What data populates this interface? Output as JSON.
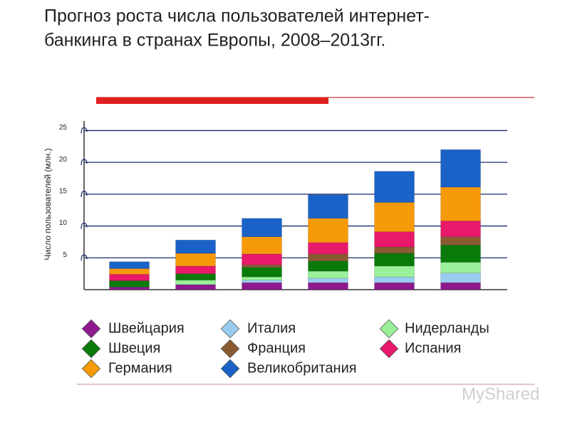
{
  "chart_data": {
    "type": "stacked_bar",
    "title": [
      "Прогноз роста числа пользователей интернет-",
      "банкинга в странах Европы, 2008–2013гг."
    ],
    "y_label": "Число пользователей (млн.)",
    "categories": [
      null,
      null,
      null,
      null,
      null,
      null
    ],
    "series": [
      {
        "name": "Швейцария",
        "color": "#8e1a8e",
        "values": [
          0.4,
          0.8,
          1.1,
          1.1,
          1.1,
          1.1
        ]
      },
      {
        "name": "Италия",
        "color": "#99ccf0",
        "values": [
          0,
          0,
          0.4,
          0.7,
          0.9,
          1.5
        ]
      },
      {
        "name": "Нидерланды",
        "color": "#99f099",
        "values": [
          0,
          0.7,
          0.5,
          1.1,
          1.7,
          1.7
        ]
      },
      {
        "name": "Швеция",
        "color": "#0a7a0a",
        "values": [
          1.0,
          1.0,
          1.5,
          1.6,
          2.0,
          2.7
        ]
      },
      {
        "name": "Франция",
        "color": "#8a5a30",
        "values": [
          0,
          0,
          0.4,
          1.1,
          1.0,
          1.3
        ]
      },
      {
        "name": "Испания",
        "color": "#e8186a",
        "values": [
          1.0,
          1.2,
          1.7,
          1.8,
          2.4,
          2.5
        ]
      },
      {
        "name": "Германия",
        "color": "#f79a0a",
        "values": [
          0.9,
          2.0,
          2.7,
          3.8,
          4.6,
          5.3
        ]
      },
      {
        "name": "Великобритания",
        "color": "#1a62c8",
        "values": [
          1.1,
          2.1,
          2.9,
          3.7,
          4.9,
          5.9
        ]
      }
    ],
    "ylim": [
      0,
      26.5
    ],
    "yticks": [
      5,
      10,
      15,
      20,
      25
    ],
    "grid": true,
    "watermark": "MyShared"
  }
}
